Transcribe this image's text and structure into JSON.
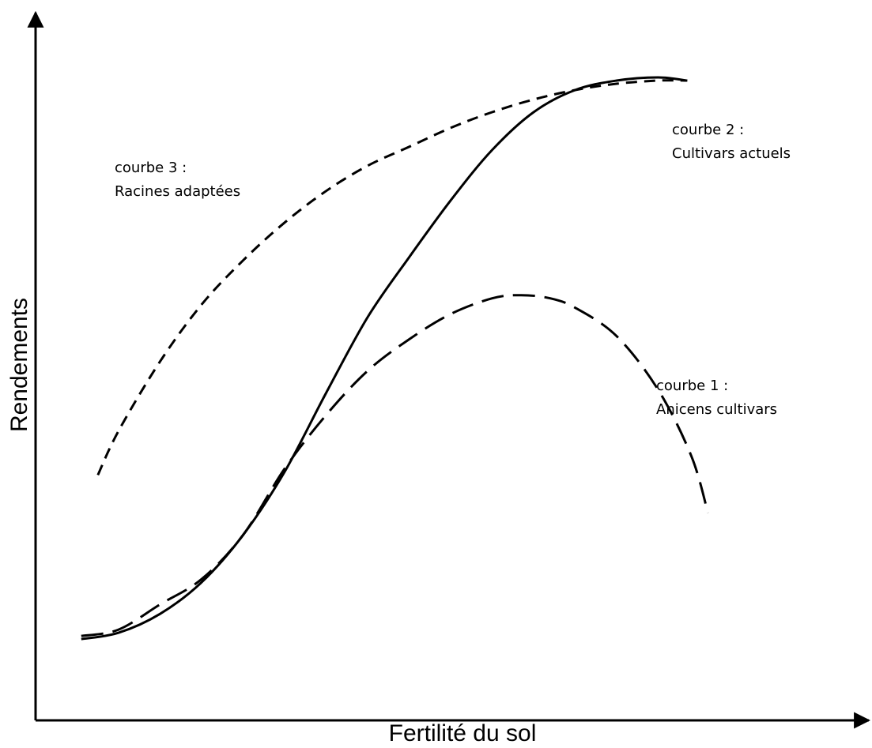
{
  "chart_data": {
    "type": "line",
    "xlabel": "Fertilité du sol",
    "ylabel": "Rendements",
    "ticks": "none",
    "grid": false,
    "legend": "none",
    "xlim": [
      0,
      100
    ],
    "ylim": [
      0,
      100
    ],
    "series": [
      {
        "id": "curve-1",
        "name": "Anicens cultivars",
        "label_lines": [
          "courbe 1 :",
          "Anicens cultivars"
        ],
        "style": "long-dash",
        "color": "#000000",
        "points": [
          [
            5.5,
            12.5
          ],
          [
            10,
            13.5
          ],
          [
            15,
            17.5
          ],
          [
            20,
            21.5
          ],
          [
            25,
            28.5
          ],
          [
            30,
            39
          ],
          [
            35,
            47.5
          ],
          [
            40,
            54.5
          ],
          [
            45,
            59.5
          ],
          [
            50,
            63.5
          ],
          [
            55,
            66
          ],
          [
            58.5,
            66.5
          ],
          [
            62,
            66
          ],
          [
            65,
            64.5
          ],
          [
            70,
            60
          ],
          [
            75,
            51.5
          ],
          [
            79,
            41
          ],
          [
            81,
            32
          ]
        ]
      },
      {
        "id": "curve-2",
        "name": "Cultivars actuels",
        "label_lines": [
          "courbe 2 :",
          "Cultivars actuels"
        ],
        "style": "solid",
        "color": "#000000",
        "points": [
          [
            5.5,
            12
          ],
          [
            10,
            13
          ],
          [
            15,
            16
          ],
          [
            20,
            21
          ],
          [
            25,
            28.5
          ],
          [
            30,
            38.5
          ],
          [
            35,
            51
          ],
          [
            40,
            63
          ],
          [
            45,
            72.5
          ],
          [
            50,
            81.5
          ],
          [
            55,
            89.5
          ],
          [
            60,
            95.5
          ],
          [
            65,
            99
          ],
          [
            70,
            100.5
          ],
          [
            75,
            101
          ],
          [
            78.5,
            100.5
          ]
        ]
      },
      {
        "id": "curve-3",
        "name": "Racines adaptées",
        "label_lines": [
          "courbe 3 :",
          "Racines adaptées"
        ],
        "style": "short-dash",
        "color": "#000000",
        "points": [
          [
            7.5,
            38
          ],
          [
            10,
            45
          ],
          [
            15,
            56
          ],
          [
            20,
            65
          ],
          [
            25,
            72
          ],
          [
            30,
            78
          ],
          [
            35,
            83
          ],
          [
            40,
            87
          ],
          [
            45,
            90
          ],
          [
            50,
            93
          ],
          [
            55,
            95.5
          ],
          [
            60,
            97.5
          ],
          [
            65,
            99
          ],
          [
            70,
            100
          ],
          [
            75,
            100.5
          ],
          [
            78.5,
            100.5
          ]
        ]
      }
    ]
  }
}
